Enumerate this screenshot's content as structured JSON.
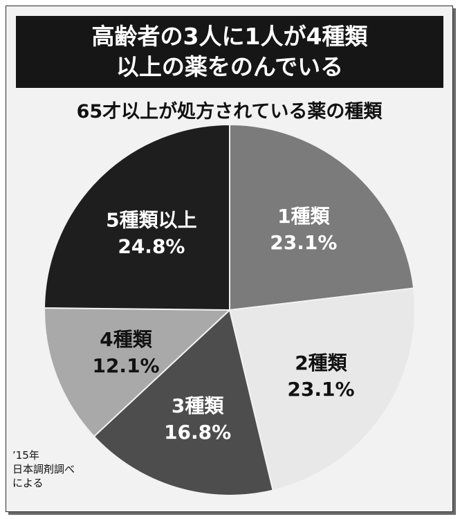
{
  "header": {
    "title_line1": "高齢者の3人に1人が4種類",
    "title_line2": "以上の薬をのんでいる"
  },
  "subtitle": "65才以上が処方されている薬の種類",
  "source": {
    "line1": "’15年",
    "line2": "日本調剤調べ",
    "line3": "による"
  },
  "chart_data": {
    "type": "pie",
    "title": "65才以上が処方されている薬の種類",
    "slices": [
      {
        "label": "1種類",
        "value": 23.1,
        "value_label": "23.1%",
        "color": "#7b7b7b",
        "text_color": "#ffffff"
      },
      {
        "label": "2種類",
        "value": 23.1,
        "value_label": "23.1%",
        "color": "#e8e8e8",
        "text_color": "#111111"
      },
      {
        "label": "3種類",
        "value": 16.8,
        "value_label": "16.8%",
        "color": "#4d4d4d",
        "text_color": "#ffffff"
      },
      {
        "label": "4種類",
        "value": 12.1,
        "value_label": "12.1%",
        "color": "#a9a9a9",
        "text_color": "#111111"
      },
      {
        "label": "5種類以上",
        "value": 24.8,
        "value_label": "24.8%",
        "color": "#1e1e1e",
        "text_color": "#ffffff"
      }
    ]
  }
}
